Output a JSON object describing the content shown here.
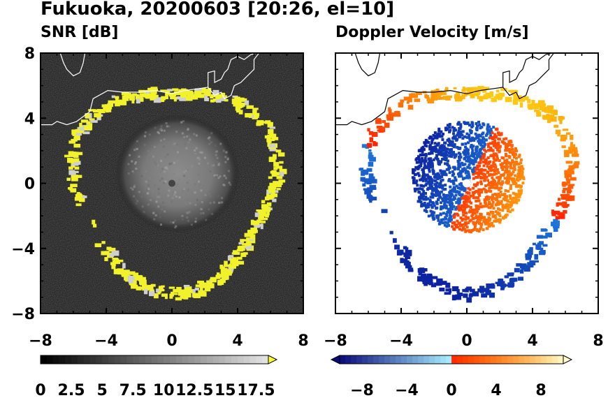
{
  "suptitle": "Fukuoka, 20200603 [20:26, el=10]",
  "chart_data": [
    {
      "type": "heatmap",
      "title": "SNR [dB]",
      "xlim": [
        -8,
        8
      ],
      "ylim": [
        -8,
        8
      ],
      "xticks": [
        "−8",
        "−4",
        "0",
        "4",
        "8"
      ],
      "yticks": [
        "8",
        "4",
        "0",
        "−4",
        "−8"
      ],
      "colormap": "gray_to_yellow",
      "colorbar": {
        "range": [
          0,
          18.5
        ],
        "extend": "max",
        "tick_values": [
          0,
          2.5,
          5,
          7.5,
          10,
          12.5,
          15,
          17.5
        ],
        "tick_labels": [
          "0",
          "2.5",
          "5",
          "7.5",
          "10",
          "12.5",
          "15",
          "17.5"
        ],
        "extend_color": "#ffff33"
      },
      "background_color": "#111111",
      "features": {
        "center_disk_radius": 3.6,
        "precip_ring_radius": 6.1,
        "ring_color": "#f2f22a",
        "coastline_color": "#ffffff"
      }
    },
    {
      "type": "heatmap",
      "title": "Doppler Velocity [m/s]",
      "xlim": [
        -8,
        8
      ],
      "ylim": [
        -8,
        8
      ],
      "xticks": [
        "−8",
        "−4",
        "0",
        "4",
        "8"
      ],
      "yticks": [],
      "colormap": "blue_white_red",
      "colorbar": {
        "range": [
          -10,
          10
        ],
        "extend": "both",
        "tick_values": [
          -8,
          -4,
          0,
          4,
          8
        ],
        "tick_labels": [
          "−8",
          "−4",
          "0",
          "4",
          "8"
        ]
      },
      "features": {
        "negative_color": "#1020b0",
        "positive_color": "#ff3000",
        "coastline_color": "#000000"
      }
    }
  ]
}
